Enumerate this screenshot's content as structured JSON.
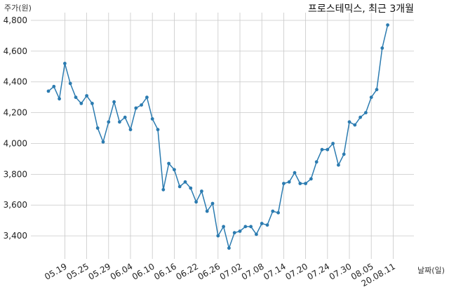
{
  "chart_data": {
    "type": "line",
    "title": "프로스테믹스, 최근 3개월",
    "ylabel": "주가(원)",
    "xlabel": "날짜(일)",
    "ylim": [
      3250,
      4850
    ],
    "yticks": [
      3400,
      3600,
      3800,
      4000,
      4200,
      4400,
      4600,
      4800
    ],
    "ytick_labels": [
      "3,400",
      "3,600",
      "3,800",
      "4,000",
      "4,200",
      "4,400",
      "4,600",
      "4,800"
    ],
    "xtick_labels": [
      "05.19",
      "05.25",
      "05.29",
      "06.04",
      "06.10",
      "06.16",
      "06.22",
      "06.26",
      "07.02",
      "07.08",
      "07.14",
      "07.20",
      "07.24",
      "07.30",
      "08.05",
      "20.08.11"
    ],
    "xtick_index": [
      3,
      7,
      11,
      15,
      19,
      23,
      27,
      31,
      35,
      39,
      43,
      47,
      51,
      55,
      59,
      63
    ],
    "grid": true,
    "colors": {
      "line": "#2b7bb0",
      "grid": "#c8c8c8"
    },
    "series": [
      {
        "values": [
          4340,
          4370,
          4290,
          4520,
          4390,
          4300,
          4260,
          4310,
          4260,
          4100,
          4010,
          4140,
          4270,
          4140,
          4170,
          4090,
          4230,
          4250,
          4300,
          4160,
          4090,
          3700,
          3870,
          3830,
          3720,
          3750,
          3710,
          3620,
          3690,
          3560,
          3610,
          3400,
          3460,
          3320,
          3420,
          3430,
          3460,
          3460,
          3410,
          3480,
          3470,
          3560,
          3550,
          3740,
          3750,
          3810,
          3740,
          3740,
          3770,
          3880,
          3960,
          3960,
          4000,
          3860,
          3930,
          4140,
          4120,
          4170,
          4200,
          4300,
          4350,
          4620,
          4770
        ]
      }
    ]
  }
}
